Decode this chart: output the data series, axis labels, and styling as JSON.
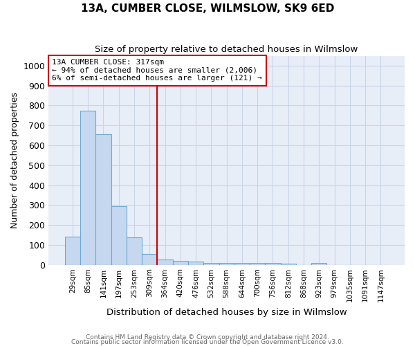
{
  "title": "13A, CUMBER CLOSE, WILMSLOW, SK9 6ED",
  "subtitle": "Size of property relative to detached houses in Wilmslow",
  "xlabel": "Distribution of detached houses by size in Wilmslow",
  "ylabel": "Number of detached properties",
  "bin_labels": [
    "29sqm",
    "85sqm",
    "141sqm",
    "197sqm",
    "253sqm",
    "309sqm",
    "364sqm",
    "420sqm",
    "476sqm",
    "532sqm",
    "588sqm",
    "644sqm",
    "700sqm",
    "756sqm",
    "812sqm",
    "868sqm",
    "923sqm",
    "979sqm",
    "1035sqm",
    "1091sqm",
    "1147sqm"
  ],
  "bar_heights": [
    140,
    775,
    655,
    295,
    138,
    55,
    28,
    18,
    15,
    8,
    9,
    9,
    9,
    9,
    7,
    0,
    10,
    0,
    0,
    0,
    0
  ],
  "bar_color": "#c5d8f0",
  "bar_edge_color": "#6aaad4",
  "vline_x": 5.5,
  "vline_color": "#cc0000",
  "annotation_text": "13A CUMBER CLOSE: 317sqm\n← 94% of detached houses are smaller (2,006)\n6% of semi-detached houses are larger (121) →",
  "annotation_box_color": "#ffffff",
  "annotation_box_edge": "#cc0000",
  "footnote1": "Contains HM Land Registry data © Crown copyright and database right 2024.",
  "footnote2": "Contains public sector information licensed under the Open Government Licence v3.0.",
  "ylim": [
    0,
    1050
  ],
  "yticks": [
    0,
    100,
    200,
    300,
    400,
    500,
    600,
    700,
    800,
    900,
    1000
  ],
  "background_color": "#ffffff",
  "grid_color": "#c8d4e8",
  "plot_bg_color": "#e8eef8"
}
